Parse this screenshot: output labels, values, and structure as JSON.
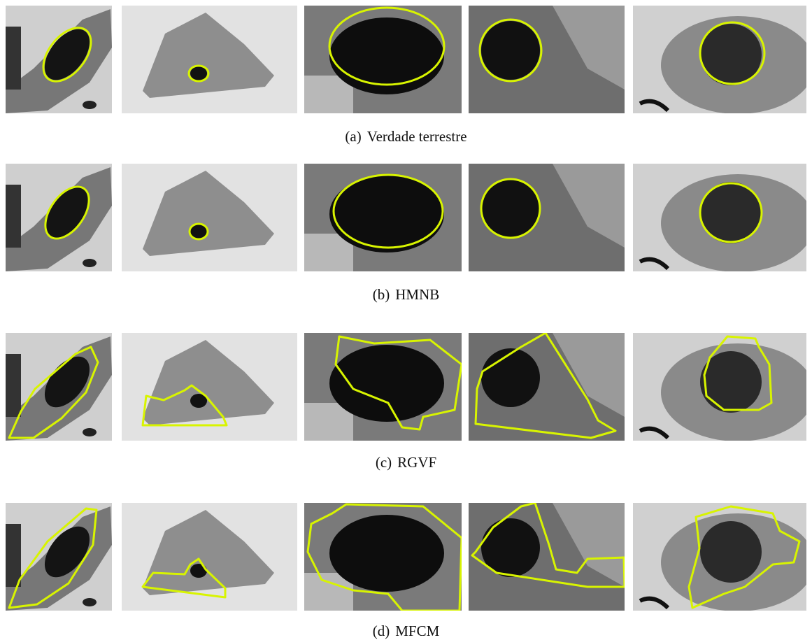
{
  "figure": {
    "panels": [
      {
        "label": "(a)",
        "text": "Verdade terrestre"
      },
      {
        "label": "(b)",
        "text": "HMNB"
      },
      {
        "label": "(c)",
        "text": "RGVF"
      },
      {
        "label": "(d)",
        "text": "MFCM"
      }
    ]
  }
}
